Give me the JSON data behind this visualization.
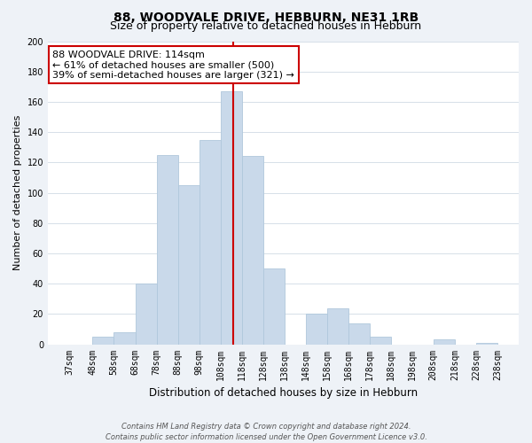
{
  "title": "88, WOODVALE DRIVE, HEBBURN, NE31 1RB",
  "subtitle": "Size of property relative to detached houses in Hebburn",
  "xlabel": "Distribution of detached houses by size in Hebburn",
  "ylabel": "Number of detached properties",
  "bin_edges": [
    37,
    48,
    58,
    68,
    78,
    88,
    98,
    108,
    118,
    128,
    138,
    148,
    158,
    168,
    178,
    188,
    198,
    208,
    218,
    228,
    238
  ],
  "bin_heights": [
    0,
    5,
    8,
    40,
    125,
    105,
    135,
    167,
    124,
    50,
    0,
    20,
    24,
    14,
    5,
    0,
    0,
    3,
    0,
    1
  ],
  "bar_color": "#c9d9ea",
  "bar_edgecolor": "#b0c8dc",
  "vline_x": 114,
  "vline_color": "#cc0000",
  "annotation_box_text": "88 WOODVALE DRIVE: 114sqm\n← 61% of detached houses are smaller (500)\n39% of semi-detached houses are larger (321) →",
  "box_edgecolor": "#cc0000",
  "ylim": [
    0,
    200
  ],
  "yticks": [
    0,
    20,
    40,
    60,
    80,
    100,
    120,
    140,
    160,
    180,
    200
  ],
  "footer_line1": "Contains HM Land Registry data © Crown copyright and database right 2024.",
  "footer_line2": "Contains public sector information licensed under the Open Government Licence v3.0.",
  "background_color": "#eef2f7",
  "plot_background_color": "#ffffff",
  "title_fontsize": 10,
  "subtitle_fontsize": 9,
  "xlabel_fontsize": 8.5,
  "ylabel_fontsize": 8,
  "tick_fontsize": 7,
  "annotation_fontsize": 8,
  "footer_fontsize": 6
}
